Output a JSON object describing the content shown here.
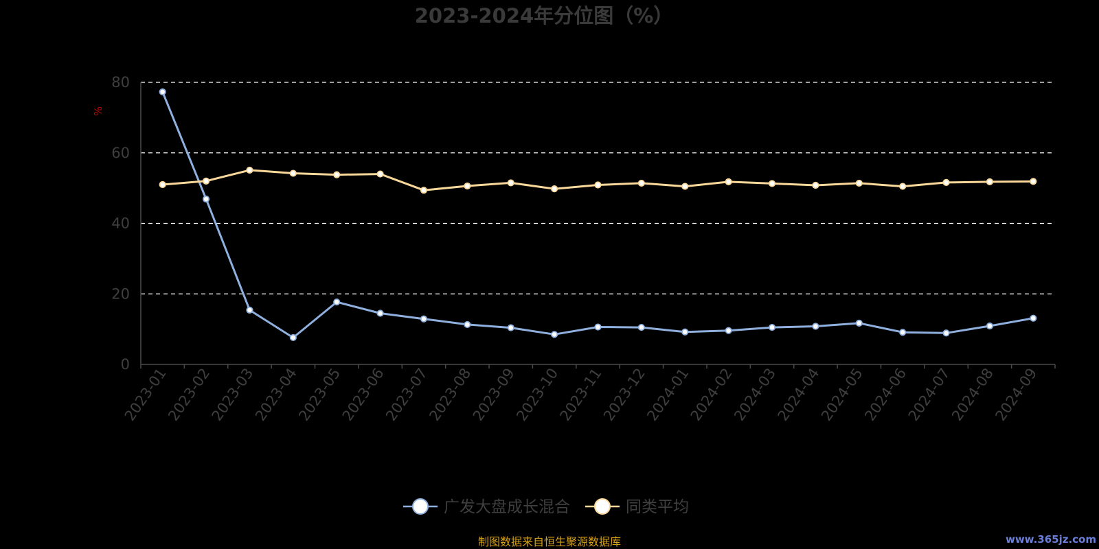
{
  "chart_data": {
    "type": "line",
    "title": "2023-2024年分位图（%）",
    "ylabel": "%",
    "ylim": [
      0,
      80
    ],
    "yticks": [
      "0",
      "20",
      "40",
      "60",
      "80"
    ],
    "grid": true,
    "legend_position": "bottom",
    "categories": [
      "2023-01",
      "2023-02",
      "2023-03",
      "2023-04",
      "2023-05",
      "2023-06",
      "2023-07",
      "2023-08",
      "2023-09",
      "2023-10",
      "2023-11",
      "2023-12",
      "2024-01",
      "2024-02",
      "2024-03",
      "2024-04",
      "2024-05",
      "2024-06",
      "2024-07",
      "2024-08",
      "2024-09"
    ],
    "series": [
      {
        "name": "广发大盘成长混合",
        "color": "#8fb0de",
        "values": [
          77.3,
          46.9,
          15.4,
          7.6,
          17.7,
          14.5,
          12.9,
          11.3,
          10.4,
          8.5,
          10.6,
          10.5,
          9.2,
          9.6,
          10.5,
          10.8,
          11.7,
          9.1,
          8.9,
          10.9,
          13.1
        ]
      },
      {
        "name": "同类平均",
        "color": "#f9d89a",
        "values": [
          51.0,
          52.0,
          55.1,
          54.2,
          53.8,
          54.0,
          49.4,
          50.6,
          51.5,
          49.8,
          50.9,
          51.4,
          50.5,
          51.8,
          51.3,
          50.8,
          51.4,
          50.5,
          51.6,
          51.8,
          51.9
        ]
      }
    ]
  },
  "footer": {
    "source": "制图数据来自恒生聚源数据库",
    "watermark": "www.365jz.com"
  }
}
